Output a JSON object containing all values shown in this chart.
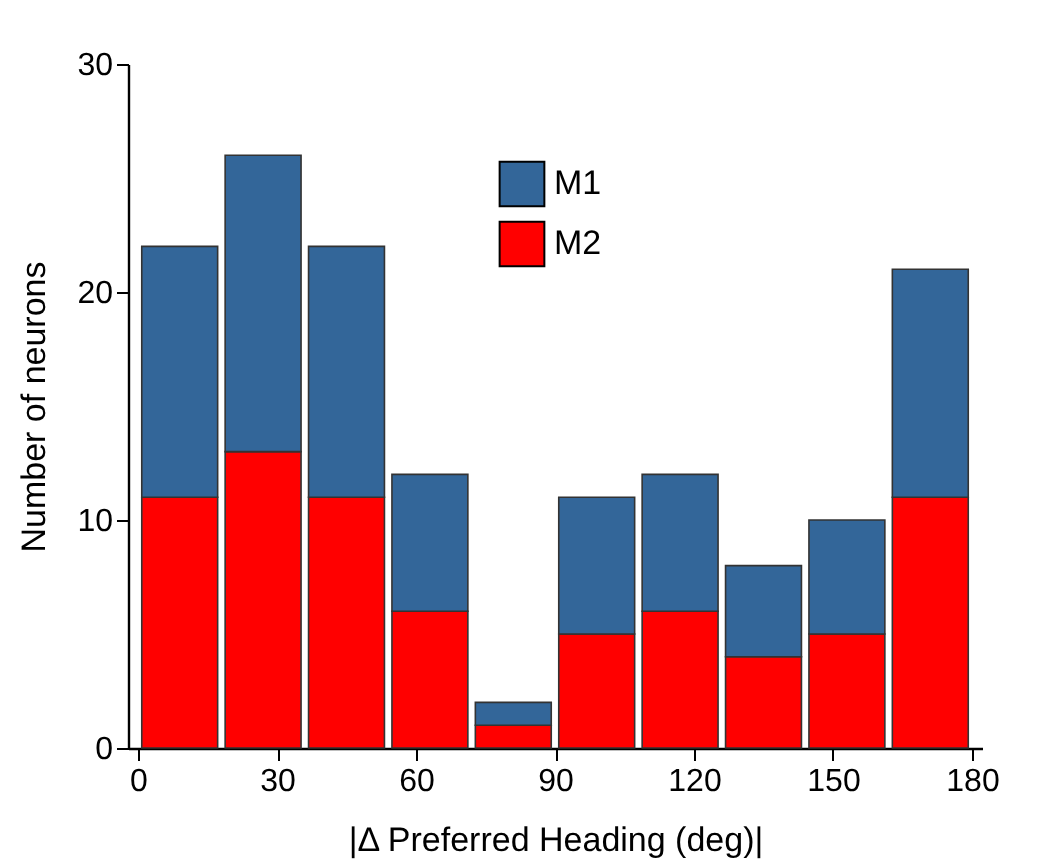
{
  "chart_data": {
    "type": "bar",
    "xlabel": "|Δ Preferred Heading (deg)|",
    "ylabel": "Number of neurons",
    "x": [
      9,
      27,
      45,
      63,
      81,
      99,
      117,
      135,
      153,
      171
    ],
    "stacked": true,
    "xlim": [
      0,
      180
    ],
    "xticks": [
      0,
      30,
      60,
      90,
      120,
      150,
      180
    ],
    "ylim": [
      0,
      30
    ],
    "yticks": [
      0,
      10,
      20,
      30
    ],
    "grid": false,
    "legend": "top",
    "series": [
      {
        "name": "M2",
        "color": "#ff0000",
        "values": [
          11,
          13,
          11,
          6,
          1,
          5,
          6,
          4,
          5,
          11
        ]
      },
      {
        "name": "M1",
        "color": "#336699",
        "values": [
          11,
          13,
          11,
          6,
          1,
          6,
          6,
          4,
          5,
          10
        ]
      }
    ]
  }
}
